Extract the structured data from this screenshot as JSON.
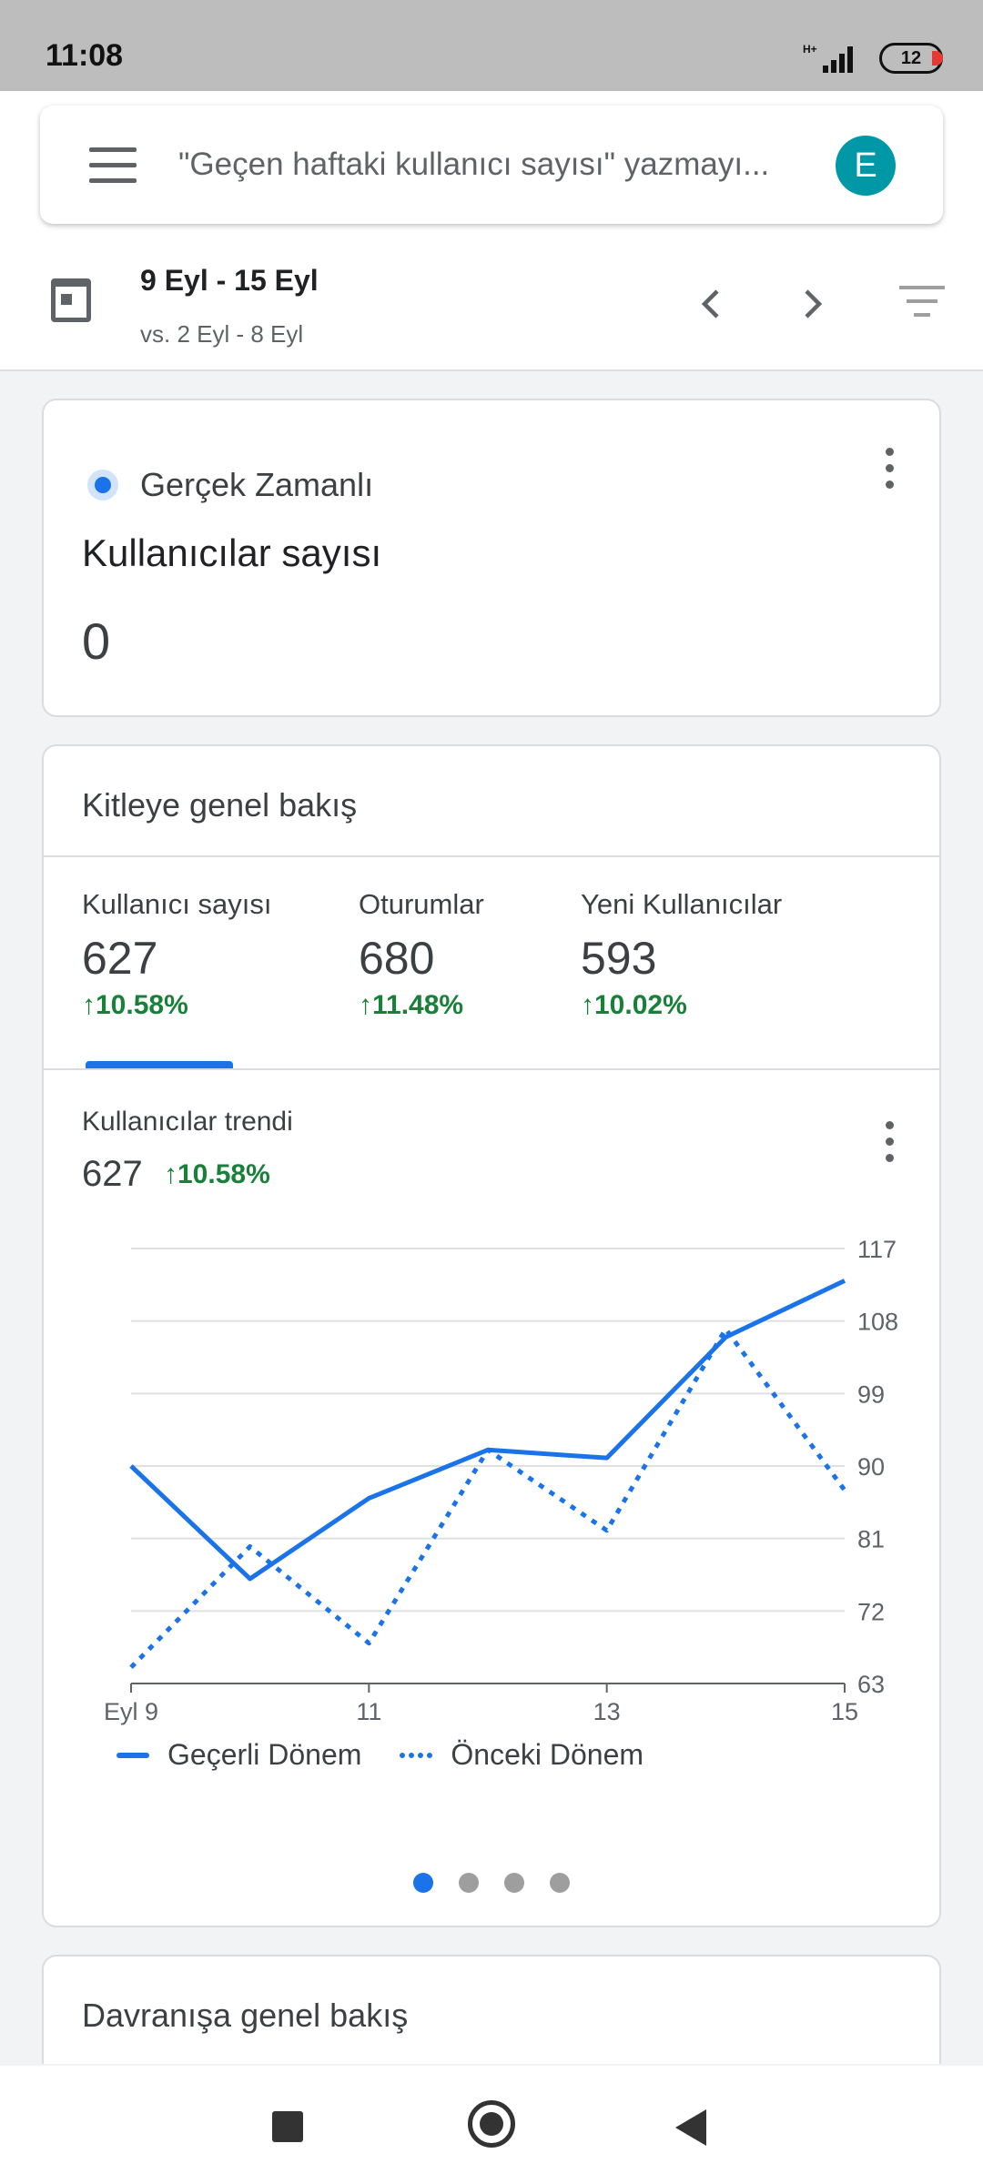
{
  "status_bar": {
    "time": "11:08",
    "network": "H+",
    "battery": "12"
  },
  "search": {
    "placeholder": "\"Geçen haftaki kullanıcı sayısı\" yazmayı...",
    "avatar_letter": "E"
  },
  "date_range": {
    "current": "9 Eyl - 15 Eyl",
    "compare": "vs. 2 Eyl - 8 Eyl"
  },
  "realtime_card": {
    "label": "Gerçek Zamanlı",
    "title": "Kullanıcılar sayısı",
    "value": "0"
  },
  "audience_card": {
    "title": "Kitleye genel bakış",
    "metrics": [
      {
        "label": "Kullanıcı sayısı",
        "value": "627",
        "change": "10.58%"
      },
      {
        "label": "Oturumlar",
        "value": "680",
        "change": "11.48%"
      },
      {
        "label": "Yeni Kullanıcılar",
        "value": "593",
        "change": "10.02%"
      }
    ],
    "trend": {
      "label": "Kullanıcılar trendi",
      "value": "627",
      "change": "10.58%"
    },
    "legend": {
      "current": "Geçerli Dönem",
      "previous": "Önceki Dönem"
    }
  },
  "chart_data": {
    "type": "line",
    "x": [
      "Eyl 9",
      "10",
      "11",
      "12",
      "13",
      "14",
      "15"
    ],
    "x_tick_labels": [
      "Eyl 9",
      "11",
      "13",
      "15"
    ],
    "y_ticks": [
      63,
      72,
      81,
      90,
      99,
      108,
      117
    ],
    "ylim": [
      63,
      117
    ],
    "series": [
      {
        "name": "Geçerli Dönem",
        "style": "solid",
        "values": [
          90,
          76,
          86,
          92,
          91,
          106,
          113
        ]
      },
      {
        "name": "Önceki Dönem",
        "style": "dotted",
        "values": [
          65,
          80,
          68,
          92,
          82,
          107,
          87
        ]
      }
    ],
    "grid": true,
    "color": "#1a73e8"
  },
  "behavior_card": {
    "title": "Davranışa genel bakış"
  }
}
